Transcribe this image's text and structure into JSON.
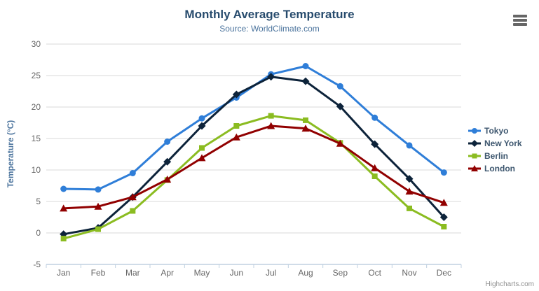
{
  "chart": {
    "title": "Monthly Average Temperature",
    "subtitle": "Source: WorldClimate.com",
    "credits": "Highcharts.com",
    "export_menu_icon": "hamburger-icon",
    "colors": {
      "title": "#274b6d",
      "subtitle": "#4d759e",
      "axis_title": "#4d759e",
      "axis_labels": "#666666",
      "grid_line": "#d8d8d8",
      "x_axis_line": "#c0d0e0",
      "legend_text": "#3e576f",
      "credits_text": "#909090"
    }
  },
  "chart_data": {
    "type": "line",
    "title": "Monthly Average Temperature",
    "subtitle": "Source: WorldClimate.com",
    "xlabel": "",
    "ylabel": "Temperature (°C)",
    "ylim": [
      -5,
      30
    ],
    "ytick_step": 5,
    "ytick_labels": [
      "-5",
      "0",
      "5",
      "10",
      "15",
      "20",
      "25",
      "30"
    ],
    "grid": true,
    "legend_position": "right",
    "categories": [
      "Jan",
      "Feb",
      "Mar",
      "Apr",
      "May",
      "Jun",
      "Jul",
      "Aug",
      "Sep",
      "Oct",
      "Nov",
      "Dec"
    ],
    "series": [
      {
        "name": "Tokyo",
        "color": "#2f7ed8",
        "marker": "circle",
        "values": [
          7.0,
          6.9,
          9.5,
          14.5,
          18.2,
          21.5,
          25.2,
          26.5,
          23.3,
          18.3,
          13.9,
          9.6
        ]
      },
      {
        "name": "New York",
        "color": "#0d233a",
        "marker": "diamond",
        "values": [
          -0.2,
          0.8,
          5.7,
          11.3,
          17.0,
          22.0,
          24.8,
          24.1,
          20.1,
          14.1,
          8.6,
          2.5
        ]
      },
      {
        "name": "Berlin",
        "color": "#8bbc21",
        "marker": "square",
        "values": [
          -0.9,
          0.6,
          3.5,
          8.4,
          13.5,
          17.0,
          18.6,
          17.9,
          14.3,
          9.0,
          3.9,
          1.0
        ]
      },
      {
        "name": "London",
        "color": "#910000",
        "marker": "triangle",
        "values": [
          3.9,
          4.2,
          5.7,
          8.5,
          11.9,
          15.2,
          17.0,
          16.6,
          14.2,
          10.3,
          6.6,
          4.8
        ]
      }
    ]
  }
}
